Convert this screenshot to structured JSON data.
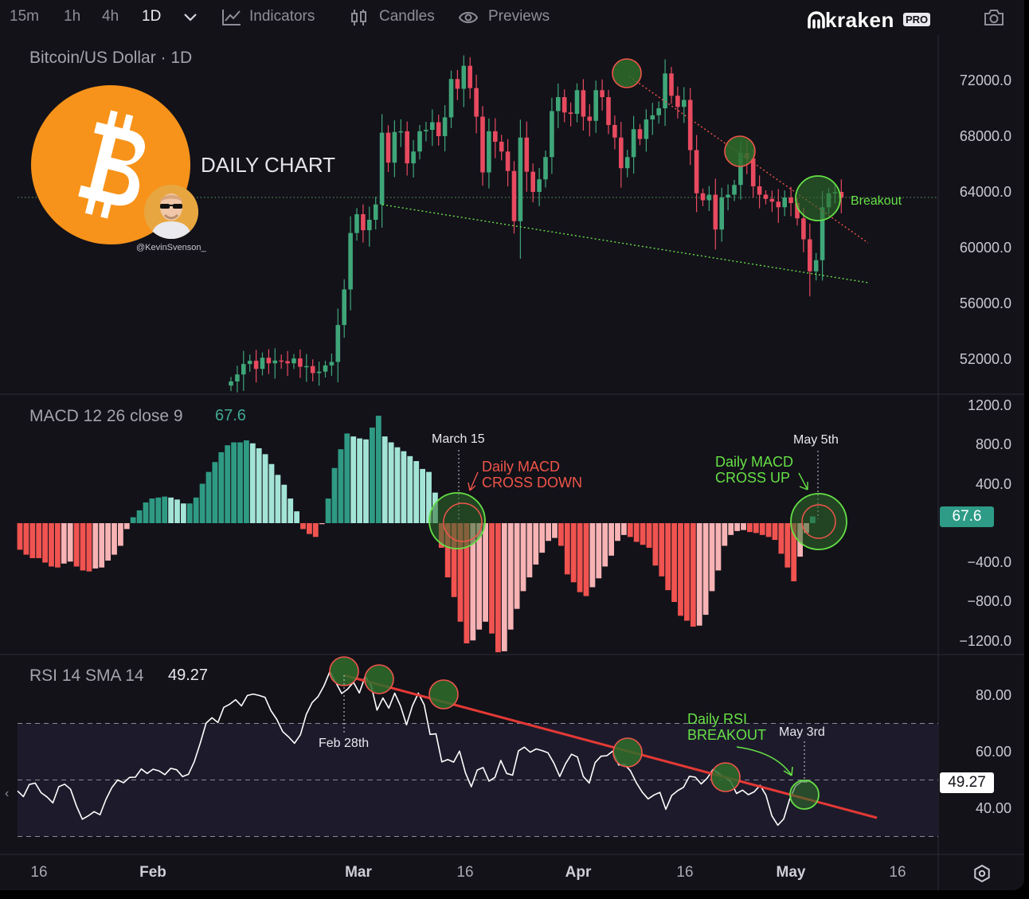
{
  "toolbar": {
    "timeframes": [
      "15m",
      "1h",
      "4h",
      "1D"
    ],
    "active_timeframe": "1D",
    "indicators_label": "Indicators",
    "candles_label": "Candles",
    "previews_label": "Previews",
    "brand": "kraken",
    "brand_badge": "PRO",
    "icons": [
      "chevron-down-icon",
      "indicators-icon",
      "candles-icon",
      "eye-icon",
      "camera-icon",
      "settings-icon"
    ]
  },
  "overlay": {
    "chart_caption": "DAILY CHART",
    "handle": "@KevinSvenson_"
  },
  "price_pane": {
    "title": "Bitcoin/US Dollar · 1D",
    "breakout_label": "Breakout"
  },
  "macd_pane": {
    "title": "MACD 12 26 close 9",
    "value": "67.6",
    "value_box": "67.6",
    "ann_march": "March 15",
    "ann_cross_down": [
      "Daily MACD",
      "CROSS DOWN"
    ],
    "ann_may": "May 5th",
    "ann_cross_up": [
      "Daily MACD",
      "CROSS UP"
    ]
  },
  "rsi_pane": {
    "title": "RSI 14 SMA 14",
    "value": "49.27",
    "value_box": "49.27",
    "ann_feb": "Feb 28th",
    "ann_breakout": [
      "Daily RSI",
      "BREAKOUT"
    ],
    "ann_may": "May 3rd"
  },
  "colors": {
    "background": "#131219",
    "up": "#3fa679",
    "down": "#e84a5f",
    "hist_up_strong": "#2f9a84",
    "hist_up_weak": "#a3e4d7",
    "hist_down_strong": "#f05350",
    "hist_down_weak": "#f8b3b5",
    "annotation_green": "#66e046",
    "annotation_red": "#f0554a",
    "bitcoin_orange": "#f7931a"
  },
  "chart_data": [
    {
      "type": "candlestick",
      "title": "Bitcoin/US Dollar · 1D",
      "y_ticks": [
        "72000.0",
        "68000.0",
        "64000.0",
        "60000.0",
        "56000.0",
        "52000.0"
      ],
      "ylim": [
        49800,
        74500
      ],
      "x_ticks": [
        "16",
        "Feb",
        "Mar",
        "16",
        "Apr",
        "16",
        "May",
        "16"
      ],
      "x_range": [
        "2024-01-14",
        "2024-05-24"
      ],
      "close": [
        50400,
        50900,
        51650,
        51880,
        51300,
        52100,
        51700,
        51900,
        51850,
        51700,
        52050,
        51450,
        51500,
        51000,
        51100,
        51550,
        51800,
        54450,
        57000,
        61050,
        62400,
        61250,
        62000,
        63100,
        68250,
        66100,
        68300,
        68350,
        66050,
        66900,
        68350,
        68450,
        69000,
        68000,
        69350,
        72100,
        71400,
        73050,
        71450,
        69400,
        65400,
        68350,
        67600,
        66900,
        65500,
        61900,
        67900,
        65450,
        64000,
        64900,
        66500,
        69800,
        70800,
        69700,
        69600,
        71300,
        69400,
        69100,
        71300,
        70800,
        68800,
        67900,
        65700,
        66500,
        68500,
        67800,
        69200,
        69500,
        70000,
        72500,
        70900,
        70100,
        70600,
        67000,
        63900,
        63400,
        63800,
        61300,
        63600,
        63800,
        64500,
        66800,
        66400,
        64400,
        63800,
        63500,
        63300,
        62900,
        63600,
        63200,
        62100,
        60600,
        58300,
        59100,
        62900,
        63900,
        64000,
        63600
      ],
      "overlay_lines": [
        "upper descending trendline (red dotted)",
        "lower descending support (green dotted)",
        "current price level (green dotted)"
      ]
    },
    {
      "type": "bar",
      "title": "MACD 12 26 close 9",
      "y_ticks": [
        "1200.0",
        "800.0",
        "400.0",
        "−400.0",
        "−800.0",
        "−1200.0"
      ],
      "ylim": [
        -1300,
        1300
      ],
      "values": [
        -270,
        -320,
        -355,
        -355,
        -400,
        -440,
        -450,
        -410,
        -390,
        -440,
        -480,
        -490,
        -460,
        -450,
        -380,
        -320,
        -230,
        -60,
        60,
        130,
        210,
        250,
        260,
        270,
        260,
        240,
        200,
        200,
        260,
        400,
        520,
        620,
        720,
        790,
        820,
        820,
        840,
        810,
        760,
        700,
        600,
        490,
        390,
        250,
        120,
        -60,
        -110,
        -140,
        -10,
        250,
        560,
        750,
        910,
        880,
        860,
        850,
        970,
        1090,
        880,
        820,
        770,
        730,
        680,
        630,
        550,
        520,
        310,
        -250,
        -550,
        -750,
        -1000,
        -1220,
        -1190,
        -1080,
        -1000,
        -1120,
        -1310,
        -1300,
        -1080,
        -870,
        -690,
        -550,
        -420,
        -300,
        -180,
        -150,
        -230,
        -520,
        -600,
        -700,
        -740,
        -650,
        -560,
        -440,
        -330,
        -180,
        -120,
        -140,
        -190,
        -220,
        -250,
        -430,
        -540,
        -680,
        -800,
        -940,
        -990,
        -1050,
        -1040,
        -930,
        -690,
        -480,
        -230,
        -120,
        -80,
        -70,
        -90,
        -100,
        -120,
        -140,
        -170,
        -310,
        -450,
        -590,
        -340,
        -100,
        67.6
      ]
    },
    {
      "type": "line",
      "title": "RSI 14 SMA 14",
      "y_ticks": [
        "80.00",
        "60.00",
        "40.00"
      ],
      "ylim": [
        30,
        92
      ],
      "bands": [
        70,
        50,
        30
      ],
      "values": [
        46.1,
        44.1,
        48.4,
        48.9,
        45.5,
        44.0,
        41.9,
        47.6,
        48.5,
        46.7,
        40.8,
        36.1,
        37.3,
        38.8,
        37.7,
        43.1,
        47.3,
        50.0,
        49.0,
        50.9,
        51.0,
        53.9,
        52.3,
        53.8,
        53.2,
        51.9,
        54.1,
        53.6,
        51.2,
        52.0,
        56.5,
        63.0,
        70.1,
        72.0,
        70.3,
        75.7,
        76.8,
        78.4,
        76.2,
        79.9,
        80.4,
        79.9,
        79.2,
        74.5,
        71.4,
        67.1,
        65.2,
        63.0,
        66.0,
        73.2,
        77.4,
        79.5,
        83.3,
        88.4,
        84.5,
        80.6,
        82.1,
        84.6,
        80.8,
        86.7,
        83.4,
        74.7,
        79.0,
        75.4,
        80.7,
        76.1,
        69.5,
        76.2,
        80.7,
        76.6,
        66.1,
        66.3,
        56.4,
        57.2,
        56.3,
        60.2,
        52.5,
        47.6,
        53.5,
        54.4,
        49.6,
        50.9,
        56.9,
        52.3,
        51.7,
        60.3,
        61.6,
        59.8,
        61.0,
        60.4,
        59.6,
        56.0,
        51.2,
        55.8,
        59.1,
        58.1,
        51.2,
        48.9,
        56.1,
        58.4,
        58.6,
        60.2,
        55.3,
        55.5,
        53.2,
        49.0,
        45.7,
        43.3,
        44.7,
        45.6,
        39.6,
        44.5,
        46.2,
        47.4,
        51.3,
        51.0,
        48.6,
        50.6,
        53.7,
        52.3,
        50.8,
        49.5,
        45.2,
        46.4,
        44.8,
        45.8,
        48.1,
        44.6,
        37.3,
        34.0,
        36.2,
        43.1,
        47.8,
        49.4,
        49.27
      ],
      "trendline": "descending resistance from Feb 28th peak to May, broken on May 3rd"
    }
  ]
}
